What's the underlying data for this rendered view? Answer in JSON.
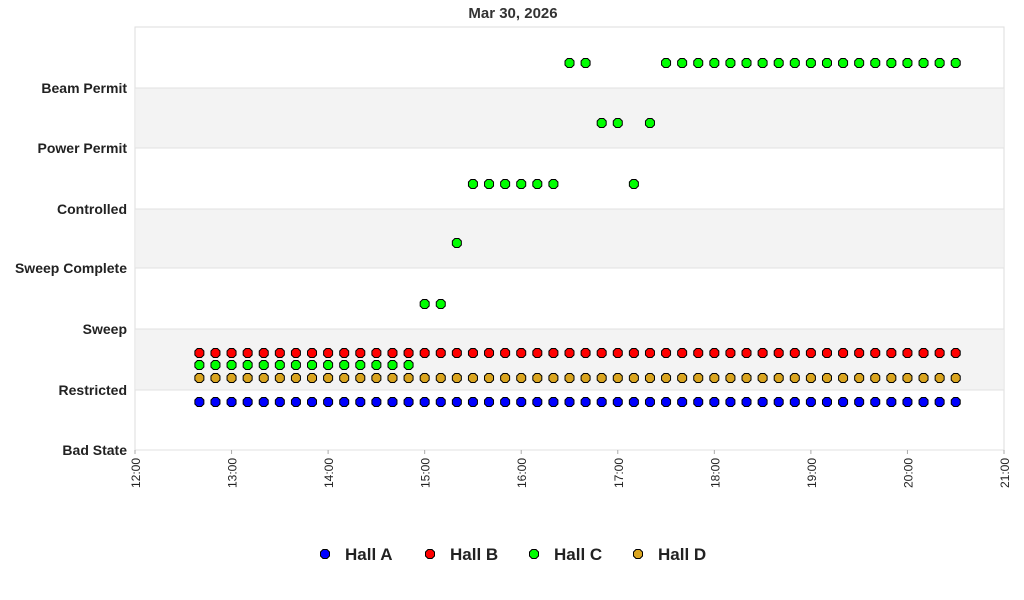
{
  "chart_data": {
    "type": "scatter",
    "title": "Mar 30, 2026",
    "xlabel": "",
    "ylabel": "",
    "x_ticks": [
      "12:00",
      "13:00",
      "14:00",
      "15:00",
      "16:00",
      "17:00",
      "18:00",
      "19:00",
      "20:00",
      "21:00"
    ],
    "xlim": [
      "12:00",
      "21:00"
    ],
    "y_categories": [
      "Bad State",
      "Restricted",
      "Sweep",
      "Sweep Complete",
      "Controlled",
      "Power Permit",
      "Beam Permit"
    ],
    "grid": true,
    "legend_position": "bottom",
    "x": [
      "12:40",
      "12:50",
      "13:00",
      "13:10",
      "13:20",
      "13:30",
      "13:40",
      "13:50",
      "14:00",
      "14:10",
      "14:20",
      "14:30",
      "14:40",
      "14:50",
      "15:00",
      "15:10",
      "15:20",
      "15:30",
      "15:40",
      "15:50",
      "16:00",
      "16:10",
      "16:20",
      "16:30",
      "16:40",
      "16:50",
      "17:00",
      "17:10",
      "17:20",
      "17:30",
      "17:40",
      "17:50",
      "18:00",
      "18:10",
      "18:20",
      "18:30",
      "18:40",
      "18:50",
      "19:00",
      "19:10",
      "19:20",
      "19:30",
      "19:40",
      "19:50",
      "20:00",
      "20:10",
      "20:20",
      "20:30"
    ],
    "series": [
      {
        "name": "Hall A",
        "color": "#0000ff",
        "values": [
          "Restricted",
          "Restricted",
          "Restricted",
          "Restricted",
          "Restricted",
          "Restricted",
          "Restricted",
          "Restricted",
          "Restricted",
          "Restricted",
          "Restricted",
          "Restricted",
          "Restricted",
          "Restricted",
          "Restricted",
          "Restricted",
          "Restricted",
          "Restricted",
          "Restricted",
          "Restricted",
          "Restricted",
          "Restricted",
          "Restricted",
          "Restricted",
          "Restricted",
          "Restricted",
          "Restricted",
          "Restricted",
          "Restricted",
          "Restricted",
          "Restricted",
          "Restricted",
          "Restricted",
          "Restricted",
          "Restricted",
          "Restricted",
          "Restricted",
          "Restricted",
          "Restricted",
          "Restricted",
          "Restricted",
          "Restricted",
          "Restricted",
          "Restricted",
          "Restricted",
          "Restricted",
          "Restricted",
          "Restricted"
        ]
      },
      {
        "name": "Hall B",
        "color": "#ff0000",
        "values": [
          "Restricted",
          "Restricted",
          "Restricted",
          "Restricted",
          "Restricted",
          "Restricted",
          "Restricted",
          "Restricted",
          "Restricted",
          "Restricted",
          "Restricted",
          "Restricted",
          "Restricted",
          "Restricted",
          "Restricted",
          "Restricted",
          "Restricted",
          "Restricted",
          "Restricted",
          "Restricted",
          "Restricted",
          "Restricted",
          "Restricted",
          "Restricted",
          "Restricted",
          "Restricted",
          "Restricted",
          "Restricted",
          "Restricted",
          "Restricted",
          "Restricted",
          "Restricted",
          "Restricted",
          "Restricted",
          "Restricted",
          "Restricted",
          "Restricted",
          "Restricted",
          "Restricted",
          "Restricted",
          "Restricted",
          "Restricted",
          "Restricted",
          "Restricted",
          "Restricted",
          "Restricted",
          "Restricted",
          "Restricted"
        ]
      },
      {
        "name": "Hall C",
        "color": "#00ff00",
        "values": [
          "Restricted",
          "Restricted",
          "Restricted",
          "Restricted",
          "Restricted",
          "Restricted",
          "Restricted",
          "Restricted",
          "Restricted",
          "Restricted",
          "Restricted",
          "Restricted",
          "Restricted",
          "Restricted",
          "Sweep",
          "Sweep",
          "Sweep Complete",
          "Controlled",
          "Controlled",
          "Controlled",
          "Controlled",
          "Controlled",
          "Controlled",
          "Beam Permit",
          "Beam Permit",
          "Power Permit",
          "Power Permit",
          "Controlled",
          "Power Permit",
          "Beam Permit",
          "Beam Permit",
          "Beam Permit",
          "Beam Permit",
          "Beam Permit",
          "Beam Permit",
          "Beam Permit",
          "Beam Permit",
          "Beam Permit",
          "Beam Permit",
          "Beam Permit",
          "Beam Permit",
          "Beam Permit",
          "Beam Permit",
          "Beam Permit",
          "Beam Permit",
          "Beam Permit",
          "Beam Permit",
          "Beam Permit"
        ]
      },
      {
        "name": "Hall D",
        "color": "#daa520",
        "values": [
          "Restricted",
          "Restricted",
          "Restricted",
          "Restricted",
          "Restricted",
          "Restricted",
          "Restricted",
          "Restricted",
          "Restricted",
          "Restricted",
          "Restricted",
          "Restricted",
          "Restricted",
          "Restricted",
          "Restricted",
          "Restricted",
          "Restricted",
          "Restricted",
          "Restricted",
          "Restricted",
          "Restricted",
          "Restricted",
          "Restricted",
          "Restricted",
          "Restricted",
          "Restricted",
          "Restricted",
          "Restricted",
          "Restricted",
          "Restricted",
          "Restricted",
          "Restricted",
          "Restricted",
          "Restricted",
          "Restricted",
          "Restricted",
          "Restricted",
          "Restricted",
          "Restricted",
          "Restricted",
          "Restricted",
          "Restricted",
          "Restricted",
          "Restricted",
          "Restricted",
          "Restricted",
          "Restricted",
          "Restricted"
        ]
      }
    ]
  }
}
